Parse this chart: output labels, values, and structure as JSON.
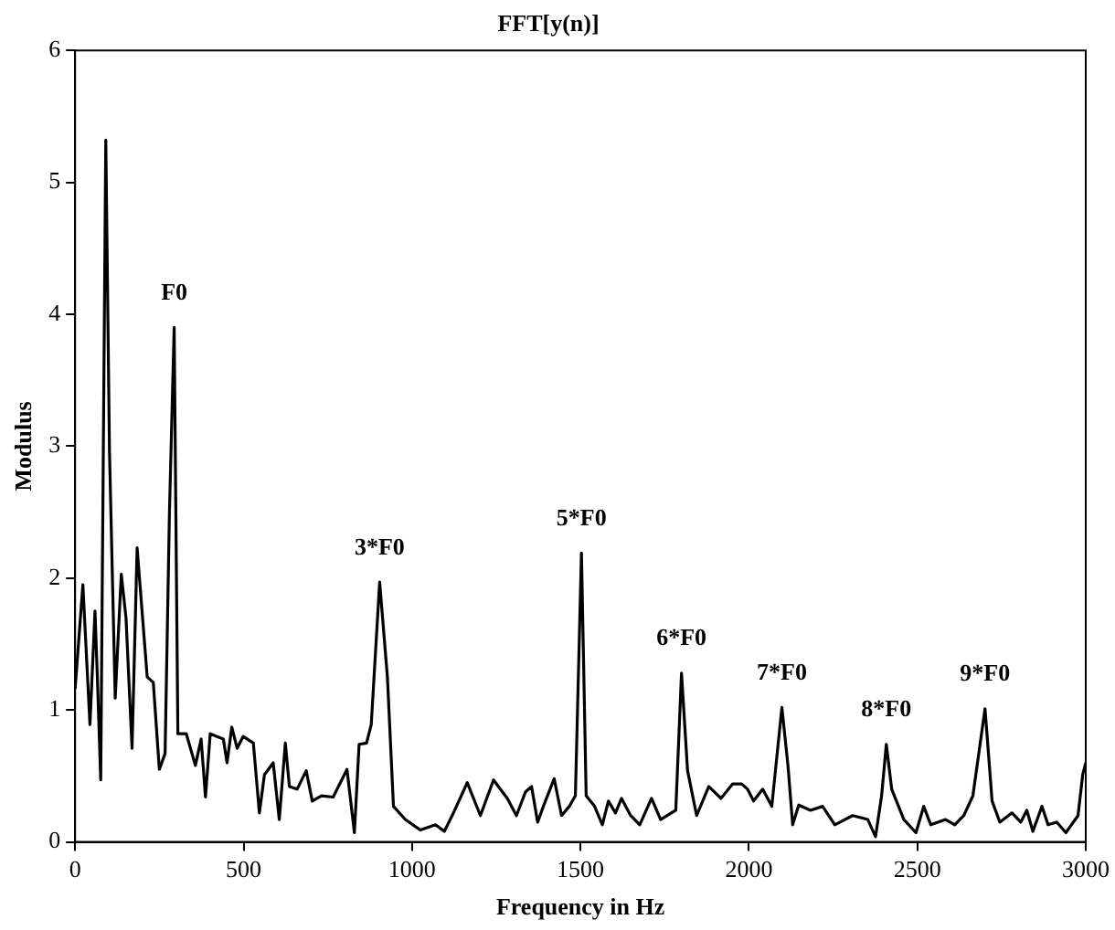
{
  "chart_data": {
    "type": "line",
    "title": "FFT[y(n)]",
    "xlabel": "Frequency in Hz",
    "ylabel": "Modulus",
    "xlim": [
      0,
      3000
    ],
    "xticks": [
      0,
      500,
      1000,
      1500,
      2000,
      2500,
      3000
    ],
    "ylim": [
      0,
      6
    ],
    "yticks": [
      0,
      1,
      2,
      3,
      4,
      5,
      6
    ],
    "grid": false,
    "legend": false,
    "marker": "none",
    "line_style": "solid",
    "series": [
      {
        "color": "#000000",
        "x": [
          0,
          23,
          44,
          59,
          66,
          76,
          91,
          102,
          119,
          137,
          151,
          169,
          184,
          214,
          232,
          250,
          267,
          280,
          294,
          305,
          330,
          357,
          374,
          387,
          401,
          440,
          451,
          465,
          481,
          499,
          529,
          547,
          562,
          588,
          606,
          624,
          636,
          659,
          686,
          704,
          731,
          766,
          807,
          829,
          843,
          865,
          879,
          904,
          927,
          945,
          980,
          1025,
          1070,
          1096,
          1123,
          1164,
          1203,
          1242,
          1283,
          1310,
          1337,
          1355,
          1373,
          1390,
          1422,
          1444,
          1467,
          1485,
          1503,
          1517,
          1542,
          1565,
          1583,
          1604,
          1622,
          1649,
          1676,
          1711,
          1738,
          1783,
          1800,
          1818,
          1845,
          1881,
          1917,
          1952,
          1979,
          1996,
          2014,
          2041,
          2068,
          2098,
          2116,
          2130,
          2148,
          2183,
          2219,
          2255,
          2308,
          2353,
          2376,
          2394,
          2408,
          2424,
          2460,
          2496,
          2519,
          2540,
          2584,
          2611,
          2638,
          2665,
          2701,
          2722,
          2745,
          2781,
          2807,
          2825,
          2843,
          2870,
          2888,
          2914,
          2941,
          2977,
          2991,
          3000
        ],
        "values": [
          1.16,
          1.95,
          0.89,
          1.75,
          1.25,
          0.47,
          5.32,
          2.96,
          1.09,
          2.03,
          1.7,
          0.71,
          2.23,
          1.25,
          1.21,
          0.55,
          0.67,
          2.5,
          3.9,
          0.82,
          0.82,
          0.58,
          0.78,
          0.34,
          0.82,
          0.78,
          0.6,
          0.87,
          0.71,
          0.8,
          0.75,
          0.22,
          0.51,
          0.6,
          0.17,
          0.75,
          0.42,
          0.4,
          0.54,
          0.31,
          0.35,
          0.34,
          0.55,
          0.07,
          0.74,
          0.75,
          0.89,
          1.97,
          1.25,
          0.27,
          0.17,
          0.09,
          0.13,
          0.08,
          0.22,
          0.45,
          0.2,
          0.47,
          0.33,
          0.2,
          0.38,
          0.42,
          0.15,
          0.27,
          0.48,
          0.2,
          0.27,
          0.35,
          2.19,
          0.35,
          0.27,
          0.13,
          0.31,
          0.22,
          0.33,
          0.2,
          0.13,
          0.33,
          0.17,
          0.24,
          1.28,
          0.54,
          0.2,
          0.42,
          0.33,
          0.44,
          0.44,
          0.4,
          0.31,
          0.4,
          0.27,
          1.02,
          0.58,
          0.13,
          0.28,
          0.24,
          0.27,
          0.13,
          0.2,
          0.17,
          0.04,
          0.35,
          0.74,
          0.4,
          0.17,
          0.07,
          0.27,
          0.13,
          0.17,
          0.13,
          0.2,
          0.35,
          1.01,
          0.31,
          0.15,
          0.22,
          0.15,
          0.24,
          0.08,
          0.27,
          0.13,
          0.15,
          0.07,
          0.2,
          0.51,
          0.6
        ]
      }
    ],
    "annotations": [
      {
        "text": "F0",
        "x": 294,
        "y": 3.9
      },
      {
        "text": "3*F0",
        "x": 904,
        "y": 1.97
      },
      {
        "text": "5*F0",
        "x": 1503,
        "y": 2.19
      },
      {
        "text": "6*F0",
        "x": 1800,
        "y": 1.28
      },
      {
        "text": "7*F0",
        "x": 2098,
        "y": 1.02
      },
      {
        "text": "8*F0",
        "x": 2408,
        "y": 0.74
      },
      {
        "text": "9*F0",
        "x": 2701,
        "y": 1.01
      }
    ]
  }
}
